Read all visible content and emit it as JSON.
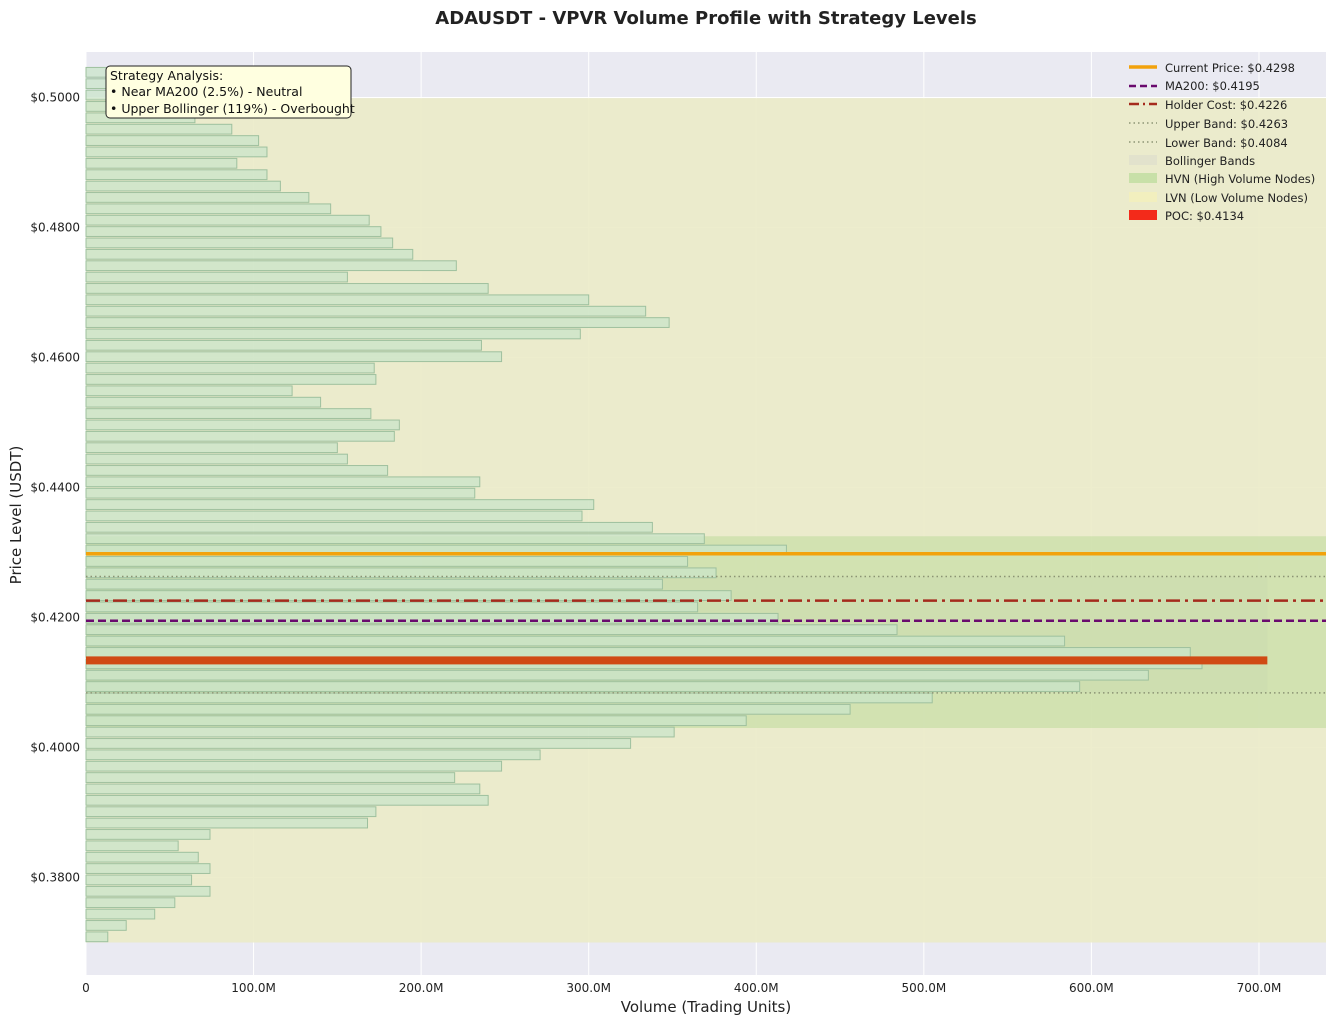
{
  "chart_data": {
    "type": "bar",
    "orientation": "horizontal",
    "title": "ADAUSDT - VPVR Volume Profile with Strategy Levels",
    "xlabel": "Volume (Trading Units)",
    "ylabel": "Price Level (USDT)",
    "xlim": [
      0,
      740
    ],
    "ylim": [
      0.365,
      0.507
    ],
    "x_unit": "M",
    "xticks": [
      {
        "value": 0,
        "label": "0"
      },
      {
        "value": 100,
        "label": "100.0M"
      },
      {
        "value": 200,
        "label": "200.0M"
      },
      {
        "value": 300,
        "label": "300.0M"
      },
      {
        "value": 400,
        "label": "400.0M"
      },
      {
        "value": 500,
        "label": "500.0M"
      },
      {
        "value": 600,
        "label": "600.0M"
      },
      {
        "value": 700,
        "label": "700.0M"
      }
    ],
    "yticks": [
      {
        "value": 0.38,
        "label": "$0.3800"
      },
      {
        "value": 0.4,
        "label": "$0.4000"
      },
      {
        "value": 0.42,
        "label": "$0.4200"
      },
      {
        "value": 0.44,
        "label": "$0.4400"
      },
      {
        "value": 0.46,
        "label": "$0.4600"
      },
      {
        "value": 0.48,
        "label": "$0.4800"
      },
      {
        "value": 0.5,
        "label": "$0.5000"
      }
    ],
    "bin_start": 0.37,
    "bin_size": 0.00175,
    "volumes": [
      13,
      24,
      41,
      53,
      74,
      63,
      74,
      67,
      55,
      74,
      168,
      173,
      240,
      235,
      220,
      248,
      271,
      325,
      351,
      394,
      456,
      505,
      593,
      634,
      666,
      659,
      584,
      484,
      413,
      365,
      385,
      344,
      376,
      359,
      418,
      369,
      338,
      296,
      303,
      232,
      235,
      180,
      156,
      150,
      184,
      187,
      170,
      140,
      123,
      173,
      172,
      248,
      236,
      295,
      348,
      334,
      300,
      240,
      156,
      221,
      195,
      183,
      176,
      169,
      146,
      133,
      116,
      108,
      90,
      108,
      103,
      87,
      65,
      54,
      52,
      42,
      33
    ],
    "lvn_zone": [
      0.37,
      0.4999
    ],
    "hvn_zone": [
      0.403,
      0.4325
    ],
    "bollinger": {
      "lower": 0.4084,
      "upper": 0.4263,
      "volume_extent": 705
    },
    "poc": {
      "price": 0.4134,
      "volume": 705
    },
    "levels": {
      "current_price": 0.4298,
      "ma200": 0.4195,
      "holder_cost": 0.4226,
      "upper_band": 0.4263,
      "lower_band": 0.4084
    },
    "legend": {
      "position": "top-right",
      "entries": [
        {
          "key": "current",
          "label": "Current Price: $0.4298",
          "color": "#f2a20c",
          "style": "solid-thick"
        },
        {
          "key": "ma200",
          "label": "MA200: $0.4195",
          "color": "#6a0a6e",
          "style": "dashed"
        },
        {
          "key": "holder",
          "label": "Holder Cost: $0.4226",
          "color": "#a52a1c",
          "style": "dashdot"
        },
        {
          "key": "upper",
          "label": "Upper Band: $0.4263",
          "color": "#8c9474",
          "style": "dotted"
        },
        {
          "key": "lower",
          "label": "Lower Band: $0.4084",
          "color": "#8c9474",
          "style": "dotted"
        },
        {
          "key": "boll",
          "label": "Bollinger Bands",
          "color": "#e2e2cc",
          "style": "patch"
        },
        {
          "key": "hvn",
          "label": "HVN (High Volume Nodes)",
          "color": "#c8e0a8",
          "style": "patch"
        },
        {
          "key": "lvn",
          "label": "LVN (Low Volume Nodes)",
          "color": "#f2efbe",
          "style": "patch"
        },
        {
          "key": "poc",
          "label": "POC: $0.4134",
          "color": "#f32a1a",
          "style": "patch"
        }
      ]
    },
    "annotation": {
      "title": "Strategy Analysis:",
      "lines": [
        "• Near MA200 (2.5%) - Neutral",
        "• Upper Bollinger (119%) - Overbought"
      ]
    }
  },
  "colors": {
    "plot_bg": "#eaeaf2",
    "grid": "#ffffff",
    "lvn": "#ebebc8",
    "hvn": "#cadfa8",
    "bollinger": "#d8d8c4",
    "bar_fill": "#c9e4c9",
    "bar_stroke": "#9ec09e",
    "poc": "#d04a14",
    "annotation_bg": "#ffffe0"
  }
}
